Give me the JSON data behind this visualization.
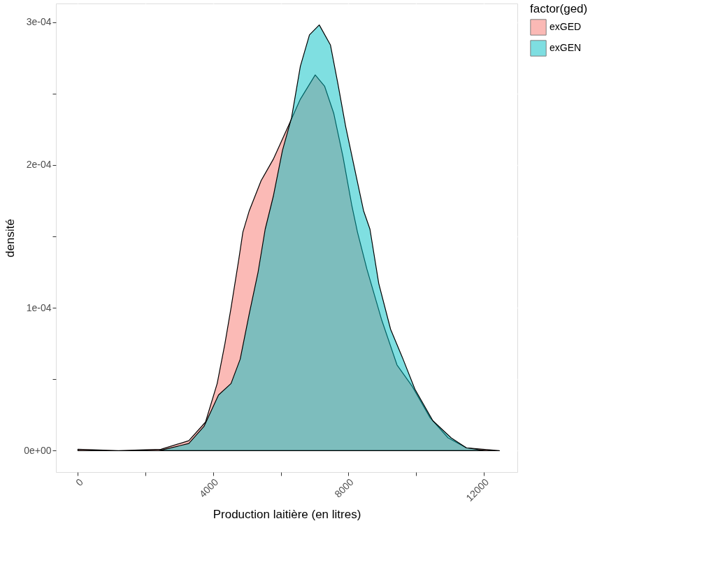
{
  "chart_data": {
    "type": "area",
    "xlabel": "Production laitière (en litres)",
    "ylabel": "densité",
    "legend_title": "factor(ged)",
    "legend": "right",
    "grid": true,
    "xlim": [
      -650,
      13000
    ],
    "ylim": [
      -1.5e-05,
      0.000313
    ],
    "xticks": [
      0,
      {
        "value": 2000,
        "label": null
      },
      4000,
      {
        "value": 6000,
        "label": null
      },
      8000,
      {
        "value": 10000,
        "label": null
      },
      12000
    ],
    "yticks": [
      {
        "value": 0,
        "label": "0e+00"
      },
      {
        "value": 5e-05,
        "label": null
      },
      {
        "value": 0.0001,
        "label": "1e-04"
      },
      {
        "value": 0.00015,
        "label": null
      },
      {
        "value": 0.0002,
        "label": "2e-04"
      },
      {
        "value": 0.00025,
        "label": null
      },
      {
        "value": 0.0003,
        "label": "3e-04"
      }
    ],
    "series": [
      {
        "name": "exGED",
        "color": "#f8766d",
        "x": [
          0,
          1200,
          2460,
          3280,
          3775,
          4120,
          4350,
          4530,
          4760,
          4880,
          5070,
          5420,
          5780,
          6220,
          6580,
          7020,
          7300,
          7570,
          7840,
          8100,
          8270,
          8550,
          8980,
          9440,
          9890,
          10420,
          10950,
          11490,
          12470
        ],
        "values": [
          1e-06,
          0,
          1e-06,
          7e-06,
          2e-05,
          4.7e-05,
          7.5e-05,
          0.0001,
          0.000134,
          0.000153,
          0.000168,
          0.000189,
          0.000204,
          0.000227,
          0.000246,
          0.000263,
          0.000255,
          0.000236,
          0.000206,
          0.000172,
          0.000153,
          0.000127,
          9.2e-05,
          6e-05,
          4.5e-05,
          2.3e-05,
          9e-06,
          2e-06,
          0
        ]
      },
      {
        "name": "exGEN",
        "color": "#00bfc4",
        "x": [
          2400,
          3280,
          3730,
          4160,
          4530,
          4800,
          5070,
          5330,
          5540,
          5780,
          6050,
          6320,
          6580,
          6850,
          7140,
          7470,
          7690,
          7920,
          8180,
          8450,
          8640,
          8900,
          9250,
          9620,
          9970,
          10500,
          11040,
          11490,
          12060
        ],
        "values": [
          0,
          5e-06,
          1.7e-05,
          3.9e-05,
          4.7e-05,
          6.4e-05,
          9.6e-05,
          0.000125,
          0.000155,
          0.000178,
          0.00021,
          0.000233,
          0.000269,
          0.000291,
          0.000298,
          0.000284,
          0.000257,
          0.000227,
          0.000198,
          0.000168,
          0.000155,
          0.000117,
          8.5e-05,
          6.4e-05,
          4.3e-05,
          2.1e-05,
          9e-06,
          2e-06,
          0
        ]
      }
    ]
  }
}
